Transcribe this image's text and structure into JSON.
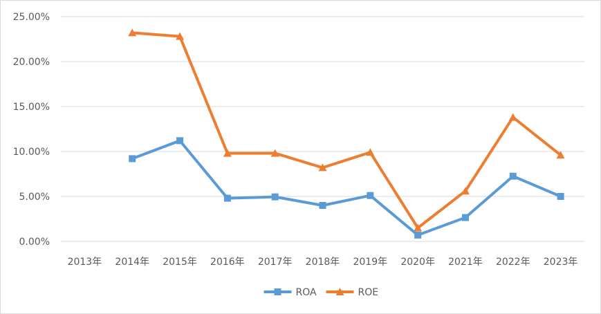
{
  "chart_data": {
    "type": "line",
    "categories": [
      "2013年",
      "2014年",
      "2015年",
      "2016年",
      "2017年",
      "2018年",
      "2019年",
      "2020年",
      "2021年",
      "2022年",
      "2023年"
    ],
    "series": [
      {
        "name": "ROA",
        "color": "#5B9BD5",
        "marker": "square",
        "values": [
          null,
          9.2,
          11.2,
          4.8,
          4.95,
          4.0,
          5.1,
          0.7,
          2.65,
          7.25,
          5.0
        ]
      },
      {
        "name": "ROE",
        "color": "#ED7D31",
        "marker": "triangle",
        "values": [
          null,
          23.2,
          22.8,
          9.8,
          9.8,
          8.2,
          9.9,
          1.5,
          5.6,
          13.8,
          9.6
        ]
      }
    ],
    "y_ticks": [
      "0.00%",
      "5.00%",
      "10.00%",
      "15.00%",
      "20.00%",
      "25.00%"
    ],
    "ylim": [
      0,
      25
    ],
    "y_unit": "%",
    "grid": true,
    "legend_position": "bottom"
  }
}
